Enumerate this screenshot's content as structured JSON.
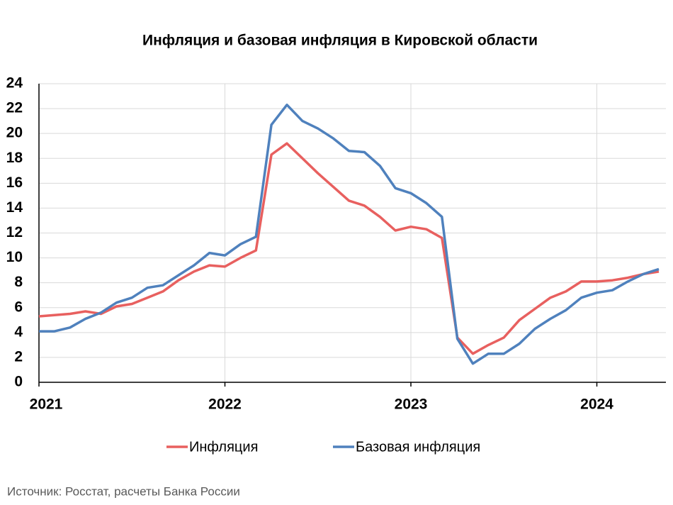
{
  "chart_data": {
    "type": "line",
    "title": "Инфляция и базовая инфляция в Кировской области",
    "categories": [
      "2021",
      null,
      null,
      null,
      null,
      null,
      null,
      null,
      null,
      null,
      null,
      null,
      "2022",
      null,
      null,
      null,
      null,
      null,
      null,
      null,
      null,
      null,
      null,
      null,
      "2023",
      null,
      null,
      null,
      null,
      null,
      null,
      null,
      null,
      null,
      null,
      null,
      "2024",
      null,
      null,
      null,
      null
    ],
    "series": [
      {
        "name": "Инфляция",
        "color": "#e8605f",
        "values": [
          5.3,
          5.4,
          5.5,
          5.7,
          5.5,
          6.1,
          6.3,
          6.8,
          7.3,
          8.2,
          8.9,
          9.4,
          9.3,
          10.0,
          10.6,
          18.3,
          19.2,
          18.0,
          16.8,
          15.7,
          14.6,
          14.2,
          13.3,
          12.2,
          12.5,
          12.3,
          11.6,
          3.6,
          2.3,
          3.0,
          3.6,
          5.0,
          5.9,
          6.8,
          7.3,
          8.1,
          8.1,
          8.2,
          8.4,
          8.7,
          8.9
        ]
      },
      {
        "name": "Базовая инфляция",
        "color": "#4f81bd",
        "values": [
          4.1,
          4.1,
          4.4,
          5.1,
          5.6,
          6.4,
          6.8,
          7.6,
          7.8,
          8.6,
          9.4,
          10.4,
          10.2,
          11.1,
          11.7,
          20.7,
          22.3,
          21.0,
          20.4,
          19.6,
          18.6,
          18.5,
          17.4,
          15.6,
          15.2,
          14.4,
          13.3,
          3.5,
          1.5,
          2.3,
          2.3,
          3.1,
          4.3,
          5.1,
          5.8,
          6.8,
          7.2,
          7.4,
          8.1,
          8.7,
          9.1
        ]
      }
    ],
    "ylim": [
      0,
      24
    ],
    "yticks": [
      0,
      2,
      4,
      6,
      8,
      10,
      12,
      14,
      16,
      18,
      20,
      22,
      24
    ],
    "grid": true,
    "legend": "bottom",
    "source": "Источник: Росстат, расчеты Банка России"
  }
}
